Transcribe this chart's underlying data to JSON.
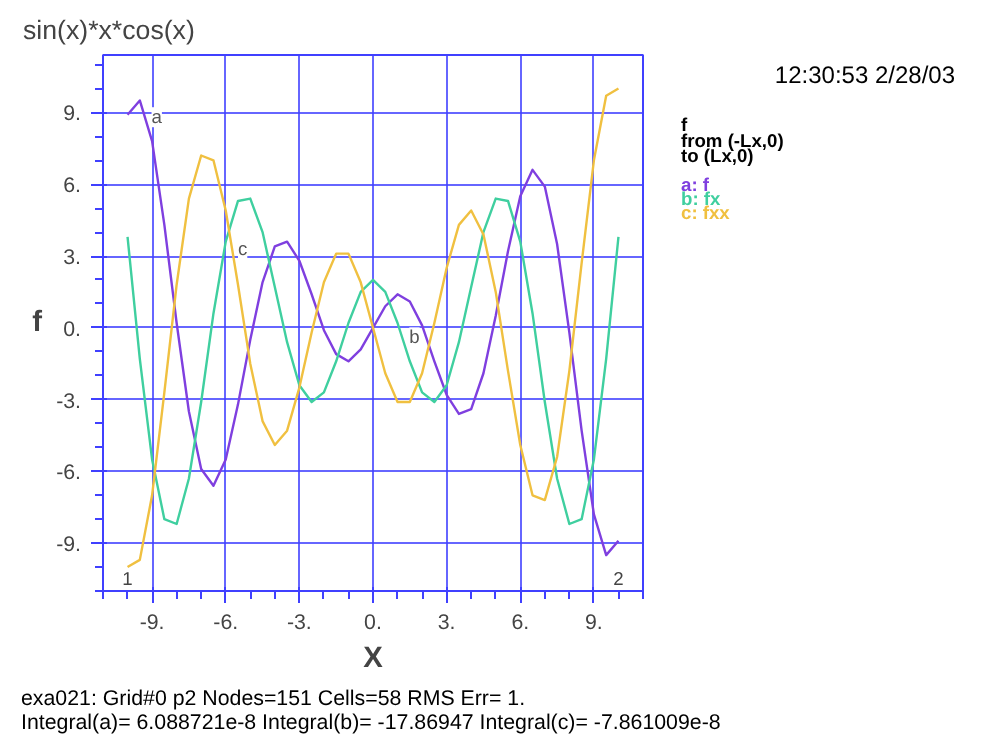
{
  "chart_data": {
    "type": "line",
    "title": "sin(x)*x*cos(x)",
    "xlabel": "X",
    "ylabel": "f",
    "legend_title": "f\nfrom (-Lx,0)\nto (Lx,0)",
    "grid": true,
    "x": [
      -10,
      -9.5,
      -9,
      -8.5,
      -8,
      -7.5,
      -7,
      -6.5,
      -6,
      -5.5,
      -5,
      -4.5,
      -4,
      -3.5,
      -3,
      -2.5,
      -2,
      -1.5,
      -1,
      -0.5,
      0,
      0.5,
      1,
      1.5,
      2,
      2.5,
      3,
      3.5,
      4,
      4.5,
      5,
      5.5,
      6,
      6.5,
      7,
      7.5,
      8,
      8.5,
      9,
      9.5,
      10
    ],
    "series": [
      {
        "name": "a: f",
        "color": "#7f3fdf",
        "values": [
          8.9,
          9.5,
          7.8,
          4.3,
          0.2,
          -3.5,
          -5.9,
          -6.6,
          -5.5,
          -3.2,
          -0.5,
          1.9,
          3.4,
          3.6,
          2.8,
          1.4,
          -0.1,
          -1.1,
          -1.4,
          -0.9,
          0,
          0.9,
          1.4,
          1.1,
          0.1,
          -1.4,
          -2.8,
          -3.6,
          -3.4,
          -1.9,
          0.5,
          3.2,
          5.5,
          6.6,
          5.9,
          3.5,
          -0.2,
          -4.3,
          -7.8,
          -9.5,
          -8.9
        ]
      },
      {
        "name": "b: fx",
        "color": "#3fcf9f",
        "values": [
          3.8,
          -1.3,
          -5.5,
          -8.0,
          -8.2,
          -6.3,
          -3.1,
          0.6,
          3.6,
          5.3,
          5.4,
          4.0,
          1.7,
          -0.6,
          -2.4,
          -3.1,
          -2.7,
          -1.4,
          0.2,
          1.5,
          2.0,
          1.5,
          0.2,
          -1.4,
          -2.7,
          -3.1,
          -2.4,
          -0.6,
          1.7,
          4.0,
          5.4,
          5.3,
          3.6,
          0.6,
          -3.1,
          -6.3,
          -8.2,
          -8.0,
          -5.5,
          -1.3,
          3.8
        ]
      },
      {
        "name": "c: fxx",
        "color": "#f0c040",
        "values": [
          -10.0,
          -9.7,
          -7.0,
          -2.7,
          1.8,
          5.4,
          7.2,
          7.0,
          4.9,
          1.8,
          -1.5,
          -3.9,
          -4.9,
          -4.3,
          -2.5,
          -0.2,
          1.9,
          3.1,
          3.1,
          1.9,
          0,
          -1.9,
          -3.1,
          -3.1,
          -1.9,
          0.2,
          2.5,
          4.3,
          4.9,
          3.9,
          1.5,
          -1.8,
          -4.9,
          -7.0,
          -7.2,
          -5.4,
          -1.8,
          2.7,
          7.0,
          9.7,
          10.0
        ]
      }
    ],
    "xlim": [
      -11,
      11
    ],
    "ylim": [
      -11,
      11.4
    ],
    "xticks": [
      {
        "value": -9,
        "label": "-9."
      },
      {
        "value": -6,
        "label": "-6."
      },
      {
        "value": -3,
        "label": "-3."
      },
      {
        "value": 0,
        "label": "0."
      },
      {
        "value": 3,
        "label": "3."
      },
      {
        "value": 6,
        "label": "6."
      },
      {
        "value": 9,
        "label": "9."
      }
    ],
    "yticks": [
      {
        "value": -9,
        "label": "-9."
      },
      {
        "value": -6,
        "label": "-6."
      },
      {
        "value": -3,
        "label": "-3."
      },
      {
        "value": 0,
        "label": "0."
      },
      {
        "value": 3,
        "label": "3."
      },
      {
        "value": 6,
        "label": "6."
      },
      {
        "value": 9,
        "label": "9."
      }
    ],
    "annotations": [
      {
        "text": "a",
        "x": -9.3,
        "y": 8.8
      },
      {
        "text": "b",
        "x": 1.2,
        "y": -0.4
      },
      {
        "text": "c",
        "x": -5.8,
        "y": 3.3
      },
      "1",
      "2",
      "12:30:53 2/28/03",
      "exa021:  Grid#0  p2  Nodes=151 Cells=58 RMS Err= 1.",
      "Integral(a)=  6.088721e-8 Integral(b)= -17.86947 Integral(c)= -7.861009e-8"
    ]
  }
}
